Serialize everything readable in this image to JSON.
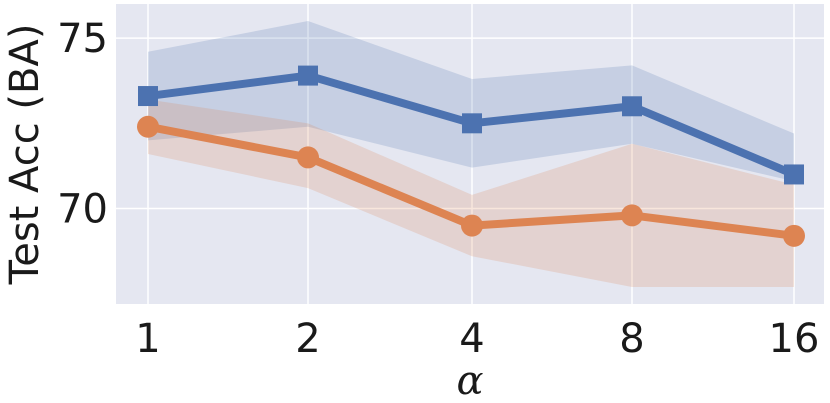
{
  "chart_data": {
    "type": "line",
    "xlabel": "α",
    "ylabel": "Test Acc (BA)",
    "categories": [
      "1",
      "2",
      "4",
      "8",
      "16"
    ],
    "yticks": [
      70,
      75
    ],
    "ylim": [
      67.2,
      76.0
    ],
    "grid": true,
    "legend": "none",
    "background": "#e5e7f1",
    "series": [
      {
        "color": "#4c72b0",
        "marker": "square",
        "values": [
          73.3,
          73.9,
          72.5,
          73.0,
          71.0
        ],
        "band_upper": [
          74.6,
          75.5,
          73.8,
          74.2,
          72.2
        ],
        "band_lower": [
          72.0,
          72.4,
          71.2,
          71.9,
          70.8
        ]
      },
      {
        "color": "#dd8452",
        "marker": "circle",
        "values": [
          72.4,
          71.5,
          69.5,
          69.8,
          69.2
        ],
        "band_upper": [
          73.2,
          72.5,
          70.4,
          71.9,
          70.7
        ],
        "band_lower": [
          71.6,
          70.6,
          68.6,
          67.7,
          67.7
        ]
      }
    ]
  }
}
